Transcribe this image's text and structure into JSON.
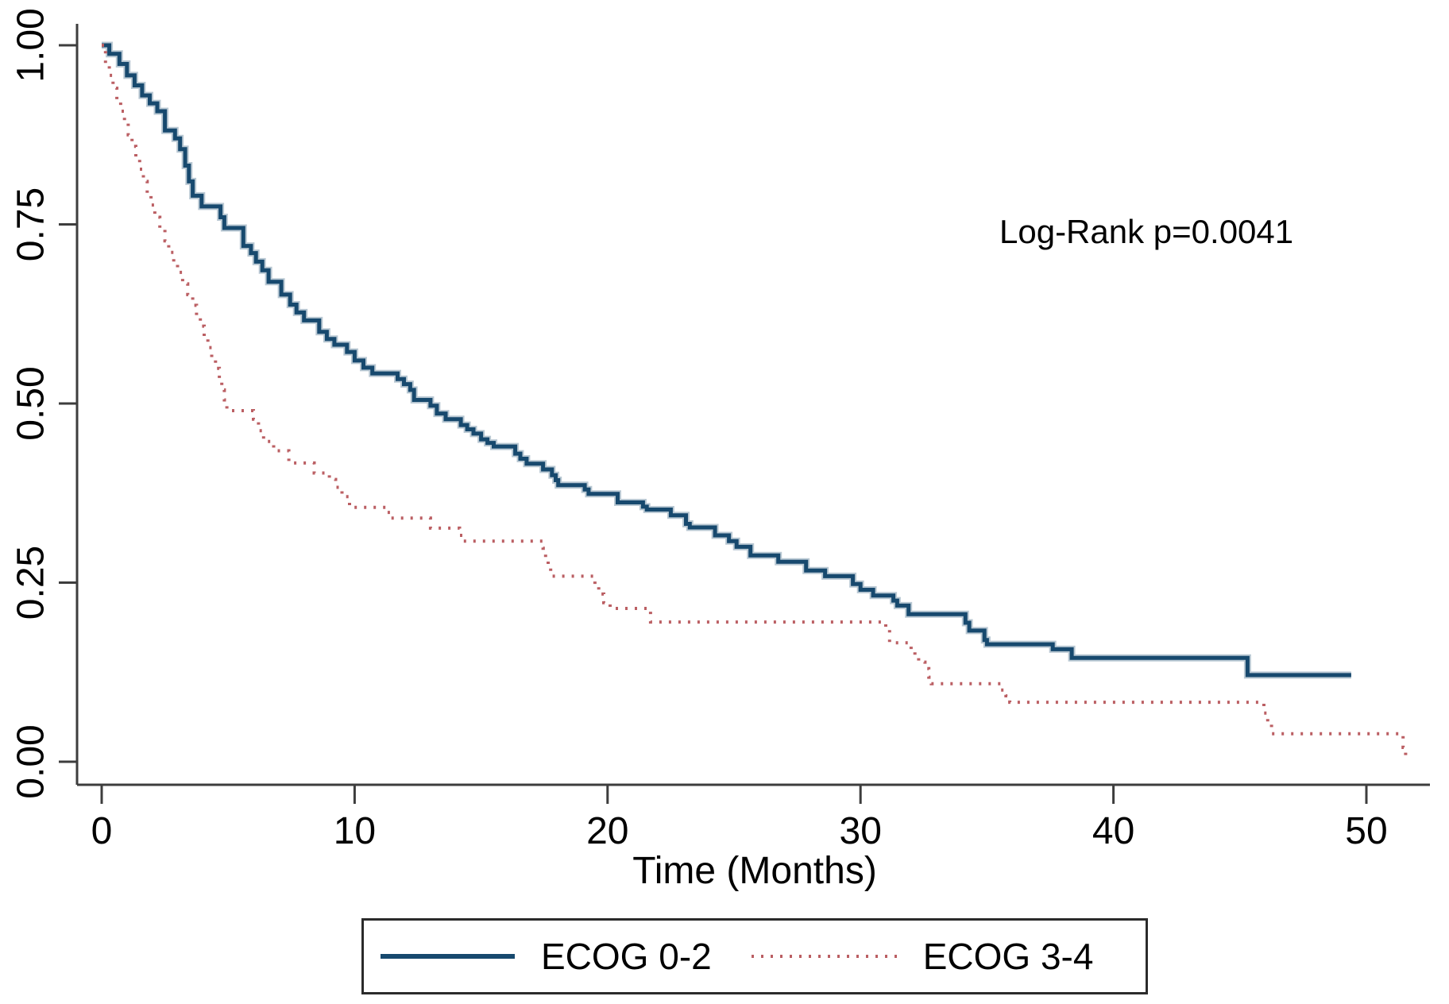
{
  "figure": {
    "background": "#ffffff"
  },
  "chart_data": {
    "type": "line",
    "subtype": "kaplan-meier-step",
    "title": "",
    "xlabel": "Time (Months)",
    "ylabel": "",
    "annotation": "Log-Rank p=0.0041",
    "xlim": [
      0,
      52
    ],
    "ylim": [
      0,
      1
    ],
    "grid": false,
    "x_ticks": [
      {
        "value": 0,
        "label": "0"
      },
      {
        "value": 10,
        "label": "10"
      },
      {
        "value": 20,
        "label": "20"
      },
      {
        "value": 30,
        "label": "30"
      },
      {
        "value": 40,
        "label": "40"
      },
      {
        "value": 50,
        "label": "50"
      }
    ],
    "y_ticks": [
      {
        "value": 0.0,
        "label": "0.00"
      },
      {
        "value": 0.25,
        "label": "0.25"
      },
      {
        "value": 0.5,
        "label": "0.50"
      },
      {
        "value": 0.75,
        "label": "0.75"
      },
      {
        "value": 1.0,
        "label": "1.00"
      }
    ],
    "colors": {
      "axis": "#3d3d3d",
      "text": "#000000",
      "ecog_0_2": "#17496e",
      "ecog_3_4": "#bb5f63"
    },
    "legend": {
      "position": "bottom-center",
      "items": [
        {
          "label": "ECOG 0-2",
          "style": "solid"
        },
        {
          "label": "ECOG 3-4",
          "style": "dotted"
        }
      ]
    },
    "series": [
      {
        "name": "ECOG 0-2",
        "style": "solid",
        "color_key": "ecog_0_2",
        "end_t": 49.4,
        "points": [
          [
            0,
            1.0
          ],
          [
            0.3,
            0.988
          ],
          [
            0.7,
            0.974
          ],
          [
            1.0,
            0.958
          ],
          [
            1.3,
            0.944
          ],
          [
            1.6,
            0.93
          ],
          [
            1.9,
            0.919
          ],
          [
            2.2,
            0.908
          ],
          [
            2.5,
            0.881
          ],
          [
            2.9,
            0.87
          ],
          [
            3.1,
            0.855
          ],
          [
            3.3,
            0.832
          ],
          [
            3.45,
            0.81
          ],
          [
            3.6,
            0.79
          ],
          [
            3.95,
            0.775
          ],
          [
            4.7,
            0.76
          ],
          [
            4.85,
            0.745
          ],
          [
            5.6,
            0.72
          ],
          [
            5.9,
            0.71
          ],
          [
            6.1,
            0.698
          ],
          [
            6.35,
            0.686
          ],
          [
            6.6,
            0.67
          ],
          [
            7.1,
            0.652
          ],
          [
            7.45,
            0.638
          ],
          [
            7.7,
            0.627
          ],
          [
            8.0,
            0.616
          ],
          [
            8.6,
            0.6
          ],
          [
            8.9,
            0.59
          ],
          [
            9.2,
            0.582
          ],
          [
            9.7,
            0.572
          ],
          [
            10.0,
            0.56
          ],
          [
            10.35,
            0.55
          ],
          [
            10.7,
            0.542
          ],
          [
            11.7,
            0.534
          ],
          [
            11.95,
            0.527
          ],
          [
            12.2,
            0.519
          ],
          [
            12.35,
            0.505
          ],
          [
            13.0,
            0.497
          ],
          [
            13.25,
            0.486
          ],
          [
            13.6,
            0.478
          ],
          [
            14.2,
            0.47
          ],
          [
            14.45,
            0.464
          ],
          [
            14.7,
            0.458
          ],
          [
            15.0,
            0.45
          ],
          [
            15.25,
            0.445
          ],
          [
            15.5,
            0.44
          ],
          [
            16.35,
            0.43
          ],
          [
            16.55,
            0.423
          ],
          [
            16.8,
            0.416
          ],
          [
            17.45,
            0.408
          ],
          [
            17.8,
            0.4
          ],
          [
            17.95,
            0.393
          ],
          [
            18.05,
            0.386
          ],
          [
            19.1,
            0.38
          ],
          [
            19.25,
            0.374
          ],
          [
            20.4,
            0.362
          ],
          [
            21.4,
            0.356
          ],
          [
            21.55,
            0.352
          ],
          [
            22.5,
            0.344
          ],
          [
            23.1,
            0.332
          ],
          [
            23.25,
            0.327
          ],
          [
            24.25,
            0.316
          ],
          [
            24.8,
            0.308
          ],
          [
            25.1,
            0.3
          ],
          [
            25.65,
            0.288
          ],
          [
            26.75,
            0.279
          ],
          [
            27.85,
            0.267
          ],
          [
            28.6,
            0.259
          ],
          [
            29.7,
            0.248
          ],
          [
            30.0,
            0.24
          ],
          [
            30.5,
            0.232
          ],
          [
            31.3,
            0.225
          ],
          [
            31.45,
            0.218
          ],
          [
            31.9,
            0.206
          ],
          [
            34.15,
            0.194
          ],
          [
            34.3,
            0.183
          ],
          [
            34.9,
            0.17
          ],
          [
            35.0,
            0.164
          ],
          [
            37.6,
            0.157
          ],
          [
            38.35,
            0.145
          ],
          [
            45.3,
            0.121
          ]
        ]
      },
      {
        "name": "ECOG 3-4",
        "style": "dotted",
        "color_key": "ecog_3_4",
        "end_t": 51.7,
        "points": [
          [
            0,
            1.0
          ],
          [
            0.15,
            0.974
          ],
          [
            0.3,
            0.958
          ],
          [
            0.45,
            0.94
          ],
          [
            0.6,
            0.923
          ],
          [
            0.75,
            0.908
          ],
          [
            0.9,
            0.891
          ],
          [
            1.05,
            0.875
          ],
          [
            1.2,
            0.859
          ],
          [
            1.35,
            0.842
          ],
          [
            1.5,
            0.827
          ],
          [
            1.65,
            0.81
          ],
          [
            1.8,
            0.794
          ],
          [
            1.95,
            0.777
          ],
          [
            2.1,
            0.76
          ],
          [
            2.3,
            0.744
          ],
          [
            2.5,
            0.727
          ],
          [
            2.65,
            0.711
          ],
          [
            2.85,
            0.697
          ],
          [
            3.0,
            0.683
          ],
          [
            3.2,
            0.667
          ],
          [
            3.4,
            0.652
          ],
          [
            3.6,
            0.637
          ],
          [
            3.75,
            0.622
          ],
          [
            3.9,
            0.608
          ],
          [
            4.05,
            0.594
          ],
          [
            4.2,
            0.578
          ],
          [
            4.35,
            0.564
          ],
          [
            4.5,
            0.549
          ],
          [
            4.65,
            0.534
          ],
          [
            4.75,
            0.519
          ],
          [
            4.85,
            0.505
          ],
          [
            4.95,
            0.49
          ],
          [
            6.0,
            0.478
          ],
          [
            6.2,
            0.462
          ],
          [
            6.4,
            0.447
          ],
          [
            6.8,
            0.434
          ],
          [
            7.4,
            0.417
          ],
          [
            8.4,
            0.403
          ],
          [
            9.0,
            0.394
          ],
          [
            9.25,
            0.383
          ],
          [
            9.5,
            0.37
          ],
          [
            9.8,
            0.355
          ],
          [
            11.3,
            0.348
          ],
          [
            11.45,
            0.34
          ],
          [
            13.0,
            0.326
          ],
          [
            14.15,
            0.316
          ],
          [
            14.3,
            0.308
          ],
          [
            17.45,
            0.298
          ],
          [
            17.55,
            0.285
          ],
          [
            17.65,
            0.272
          ],
          [
            17.75,
            0.259
          ],
          [
            19.5,
            0.247
          ],
          [
            19.65,
            0.234
          ],
          [
            19.85,
            0.222
          ],
          [
            20.1,
            0.214
          ],
          [
            21.7,
            0.195
          ],
          [
            31.0,
            0.184
          ],
          [
            31.15,
            0.166
          ],
          [
            32.0,
            0.157
          ],
          [
            32.15,
            0.148
          ],
          [
            32.3,
            0.139
          ],
          [
            32.55,
            0.13
          ],
          [
            32.7,
            0.118
          ],
          [
            32.8,
            0.109
          ],
          [
            35.55,
            0.1
          ],
          [
            35.75,
            0.092
          ],
          [
            35.9,
            0.083
          ],
          [
            45.95,
            0.068
          ],
          [
            46.1,
            0.054
          ],
          [
            46.25,
            0.039
          ],
          [
            51.45,
            0.02
          ],
          [
            51.55,
            0.005
          ]
        ]
      }
    ]
  }
}
